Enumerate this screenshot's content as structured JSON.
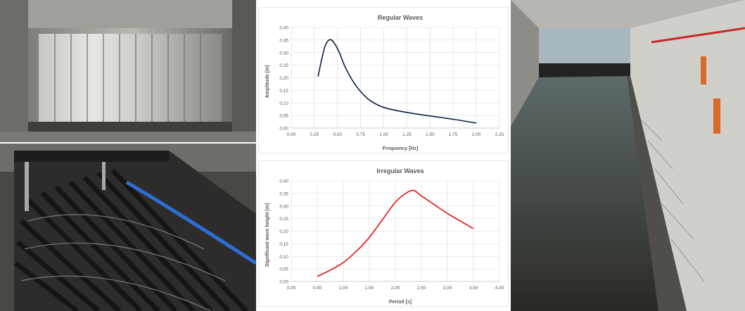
{
  "charts": [
    {
      "type": "line",
      "title": "Regular Waves",
      "xlabel": "Frequency [Hz]",
      "ylabel": "Amplitude [m]",
      "xlim": [
        0,
        2.25
      ],
      "ylim": [
        0,
        0.4
      ],
      "xticks": [
        "0,00",
        "0,25",
        "0,50",
        "0,75",
        "1,00",
        "1,25",
        "1,50",
        "1,75",
        "2,00",
        "2,25"
      ],
      "yticks": [
        "0,00",
        "0,05",
        "0,10",
        "0,15",
        "0,20",
        "0,25",
        "0,30",
        "0,35",
        "0,40"
      ],
      "line_color": "#0a1f44",
      "x": [
        0.29,
        0.33,
        0.37,
        0.42,
        0.47,
        0.52,
        0.58,
        0.66,
        0.75,
        0.85,
        1.0,
        1.25,
        1.5,
        1.75,
        2.0
      ],
      "y": [
        0.205,
        0.275,
        0.33,
        0.352,
        0.335,
        0.3,
        0.245,
        0.19,
        0.145,
        0.11,
        0.082,
        0.062,
        0.048,
        0.035,
        0.02
      ]
    },
    {
      "type": "line",
      "title": "Irregular Waves",
      "xlabel": "Period [s]",
      "ylabel": "Significant wave height [m]",
      "xlim": [
        0,
        4
      ],
      "ylim": [
        0,
        0.4
      ],
      "xticks": [
        "0,00",
        "0,50",
        "1,00",
        "1,50",
        "2,00",
        "2,50",
        "3,00",
        "3,50",
        "4,00"
      ],
      "yticks": [
        "0,00",
        "0,05",
        "0,10",
        "0,15",
        "0,20",
        "0,25",
        "0,30",
        "0,35",
        "0,40"
      ],
      "line_color": "#e3120b",
      "x": [
        0.5,
        0.75,
        1.0,
        1.25,
        1.5,
        1.75,
        2.0,
        2.2,
        2.35,
        2.5,
        2.75,
        3.0,
        3.25,
        3.5
      ],
      "y": [
        0.02,
        0.045,
        0.075,
        0.12,
        0.175,
        0.245,
        0.315,
        0.35,
        0.362,
        0.34,
        0.305,
        0.27,
        0.24,
        0.21
      ]
    }
  ],
  "photos": {
    "wavemaker": "wave maker paddles",
    "absorber": "wave absorber beach",
    "flume": "wave flume"
  }
}
